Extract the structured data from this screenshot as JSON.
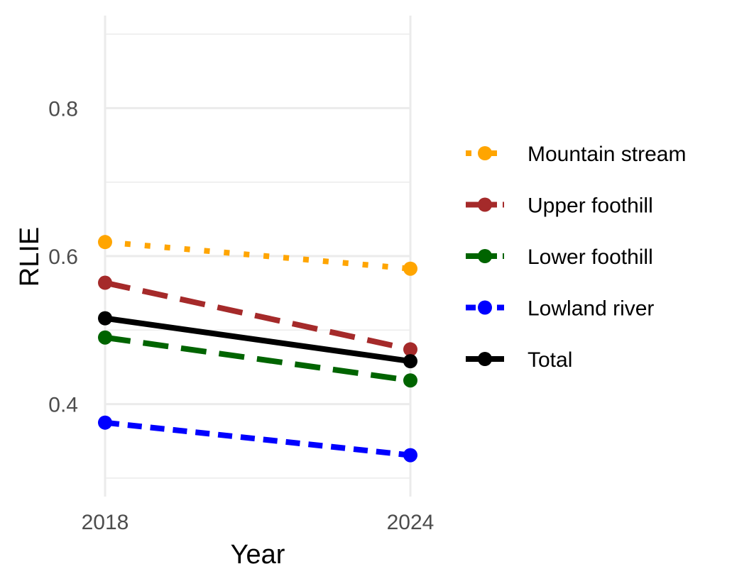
{
  "chart_data": {
    "type": "line",
    "xlabel": "Year",
    "ylabel": "RLIE",
    "x": [
      "2018",
      "2024"
    ],
    "xlim": [
      2018,
      2024
    ],
    "ylim": [
      0.275,
      0.925
    ],
    "y_ticks": [
      0.4,
      0.6,
      0.8
    ],
    "y_tick_labels": [
      "0.4",
      "0.6",
      "0.8"
    ],
    "y_minor_grid": [
      0.3,
      0.5,
      0.7,
      0.9
    ],
    "grid": true,
    "legend_position": "right",
    "series": [
      {
        "name": "Mountain stream",
        "values": [
          0.619,
          0.583
        ],
        "color": "#FFA500",
        "dash": "dotted"
      },
      {
        "name": "Upper foothill",
        "values": [
          0.564,
          0.474
        ],
        "color": "#A52A2A",
        "dash": "dashed"
      },
      {
        "name": "Lower foothill",
        "values": [
          0.49,
          0.432
        ],
        "color": "#006400",
        "dash": "dashed"
      },
      {
        "name": "Lowland river",
        "values": [
          0.375,
          0.331
        ],
        "color": "#0000FF",
        "dash": "short-dashed"
      },
      {
        "name": "Total",
        "values": [
          0.516,
          0.458
        ],
        "color": "#000000",
        "dash": "solid"
      }
    ]
  }
}
